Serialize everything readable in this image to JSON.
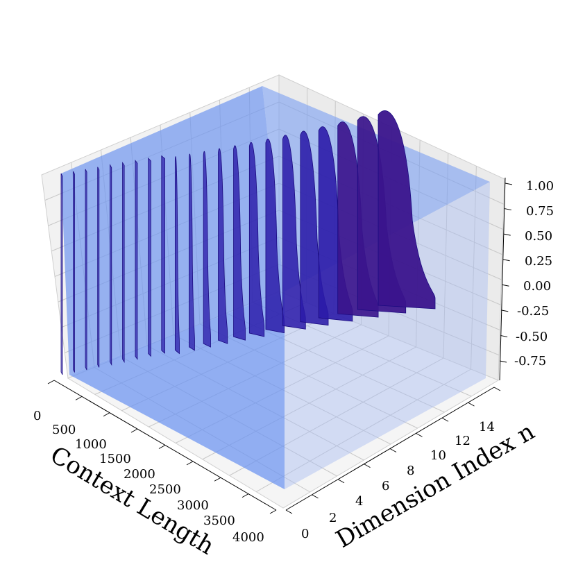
{
  "chart_data": {
    "type": "3d-surface",
    "xlabel": "Context Length",
    "ylabel": "Dimension Index n",
    "zlabel": "",
    "x_ticks": [
      "0",
      "500",
      "1000",
      "1500",
      "2000",
      "2500",
      "3000",
      "3500",
      "4000"
    ],
    "y_ticks": [
      "0",
      "2",
      "4",
      "6",
      "8",
      "10",
      "12",
      "14"
    ],
    "z_ticks": [
      "1.00",
      "0.75",
      "0.50",
      "0.25",
      "0.00",
      "-0.25",
      "-0.50",
      "-0.75"
    ],
    "xlim": [
      0,
      4000
    ],
    "ylim": [
      0,
      16
    ],
    "zlim": [
      -1,
      1
    ],
    "grid": true,
    "series": [
      {
        "values": [
          [
            0,
            0,
            1.0
          ],
          [
            4000,
            0,
            1.0
          ],
          [
            4000,
            16,
            1.0
          ]
        ]
      }
    ],
    "colors": {
      "plane": "#4a7cf0",
      "wave": "#2a1aa8",
      "wave_dark": "#3a148c",
      "pane": "#f2f2f2",
      "gridline": "#c8c8c8"
    }
  }
}
